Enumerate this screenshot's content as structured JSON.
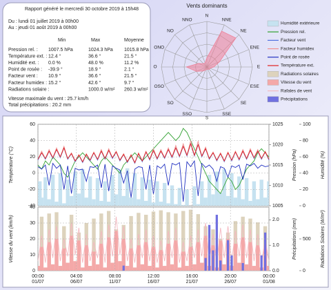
{
  "report": {
    "title": "Rapport généré le mercredi 30 octobre 2019 à 15h48",
    "from": "Du : lundi 01 juillet 2019 à 00h00",
    "to": "Au : jeudi 01 août 2019 à 00h00",
    "columns": [
      "Min",
      "Max",
      "Moyenne"
    ],
    "rows": [
      {
        "label": "Pression rel. :",
        "min": "1007.5 hPa",
        "max": "1024.3 hPa",
        "mean": "1015.8 hPa"
      },
      {
        "label": "Température ext. :",
        "min": "12.4 °",
        "max": "36.6 °",
        "mean": "21.5 °"
      },
      {
        "label": "Humidité ext. :",
        "min": "0.0 %",
        "max": "48.0 %",
        "mean": "11.2 %"
      },
      {
        "label": "Point de rosée :",
        "min": "-39.9 °",
        "max": "18.9 °",
        "mean": "2.1 °"
      },
      {
        "label": "Facteur vent :",
        "min": "10.9 °",
        "max": "36.6 °",
        "mean": "21.5 °"
      },
      {
        "label": "Facteur humidex :",
        "min": "15.2 °",
        "max": "42.6 °",
        "mean": "9.7 °"
      },
      {
        "label": "Radiations solaire :",
        "max": "1000.0 w/m²",
        "mean": "260.3 w/m²"
      }
    ],
    "wind_max": "Vitesse maximale du vent : 25.7 km/h",
    "rain_total": "Total précipitations : 20.2 mm"
  },
  "chart_data": [
    {
      "type": "radar",
      "title": "Vents dominants",
      "categories": [
        "N",
        "NNE",
        "NE",
        "ENE",
        "E",
        "ESE",
        "SE",
        "SSE",
        "S",
        "SSO",
        "SO",
        "OSO",
        "O",
        "ONO",
        "NO",
        "NNO"
      ],
      "values": [
        8,
        34,
        36,
        12,
        6,
        3,
        3,
        2,
        2,
        3,
        5,
        10,
        18,
        8,
        4,
        4
      ],
      "color": "#f08098",
      "rlim": [
        0,
        40
      ],
      "rticks": [
        10,
        20,
        30,
        40
      ]
    },
    {
      "type": "line",
      "x": [
        "01/07 00:00",
        "01/07 12:00",
        "02/07 00:00",
        "02/07 12:00",
        "03/07 00:00",
        "03/07 12:00",
        "04/07 00:00",
        "04/07 12:00",
        "05/07 00:00",
        "05/07 12:00",
        "06/07 00:00",
        "06/07 12:00",
        "07/07 00:00",
        "07/07 12:00",
        "08/07 00:00",
        "08/07 12:00",
        "09/07 00:00",
        "09/07 12:00",
        "10/07 00:00",
        "10/07 12:00",
        "11/07 00:00",
        "11/07 12:00",
        "12/07 00:00",
        "12/07 12:00",
        "13/07 00:00",
        "13/07 12:00",
        "14/07 00:00",
        "14/07 12:00",
        "15/07 00:00",
        "15/07 12:00",
        "16/07 00:00",
        "16/07 12:00",
        "17/07 00:00",
        "17/07 12:00",
        "18/07 00:00",
        "18/07 12:00",
        "19/07 00:00",
        "19/07 12:00",
        "20/07 00:00",
        "20/07 12:00",
        "21/07 00:00",
        "21/07 12:00",
        "22/07 00:00",
        "22/07 12:00",
        "23/07 00:00",
        "23/07 12:00",
        "24/07 00:00",
        "24/07 12:00",
        "25/07 00:00",
        "25/07 12:00",
        "26/07 00:00",
        "26/07 12:00",
        "27/07 00:00",
        "27/07 12:00",
        "28/07 00:00",
        "28/07 12:00",
        "29/07 00:00",
        "29/07 12:00",
        "30/07 00:00",
        "30/07 12:00",
        "31/07 00:00",
        "31/07 12:00",
        "01/08 00:00"
      ],
      "xlim": [
        "01/07 00:00",
        "01/08 00:00"
      ],
      "ylabel": "Température (°C)",
      "ylim": [
        -40,
        60
      ],
      "yticks": [
        -40,
        -20,
        0,
        20,
        40,
        60
      ],
      "y2label": "Pression (hPa)",
      "y2lim": [
        1005,
        1025
      ],
      "y2ticks": [
        1005,
        1010,
        1015,
        1020,
        1025
      ],
      "y3label": "Humidité (%)",
      "y3lim": [
        0,
        100
      ],
      "y3ticks": [
        0,
        20,
        40,
        60,
        80,
        100
      ],
      "grid": true,
      "series": [
        {
          "name": "Humidité extérieure",
          "color": "#c6e2f0",
          "kind": "area",
          "axis": "y3",
          "values": [
            30,
            10,
            35,
            8,
            38,
            5,
            40,
            3,
            32,
            12,
            42,
            15,
            45,
            10,
            36,
            8,
            34,
            6,
            30,
            5,
            38,
            14,
            44,
            12,
            46,
            10,
            40,
            8,
            35,
            6,
            32,
            4,
            30,
            5,
            28,
            3,
            25,
            2,
            22,
            1,
            20,
            0,
            24,
            2,
            30,
            10,
            38,
            14,
            42,
            16,
            45,
            12,
            40,
            10,
            36,
            8,
            34,
            6,
            30,
            8,
            32,
            10,
            30
          ]
        },
        {
          "name": "Pression rel.",
          "color": "#30a030",
          "kind": "line",
          "axis": "y2",
          "values": [
            1015,
            1014,
            1016,
            1015,
            1017,
            1016,
            1015,
            1013,
            1012,
            1014,
            1016,
            1017,
            1018,
            1017,
            1016,
            1015,
            1014,
            1016,
            1017,
            1016,
            1015,
            1014,
            1013,
            1015,
            1016,
            1017,
            1018,
            1017,
            1016,
            1017,
            1018,
            1019,
            1020,
            1021,
            1022,
            1023,
            1022,
            1021,
            1022,
            1024,
            1023,
            1021,
            1019,
            1017,
            1015,
            1013,
            1011,
            1010,
            1009,
            1008,
            1010,
            1012,
            1011,
            1009,
            1010,
            1012,
            1014,
            1015,
            1016,
            1018,
            1019,
            1018,
            1017
          ]
        },
        {
          "name": "Facteur vent",
          "color": "#5070e0",
          "kind": "line",
          "axis": "y",
          "values": [
            16,
            25,
            17,
            27,
            18,
            29,
            19,
            31,
            17,
            24,
            14,
            22,
            13,
            23,
            15,
            25,
            16,
            27,
            17,
            28,
            18,
            26,
            15,
            23,
            13,
            22,
            12,
            24,
            14,
            26,
            16,
            28,
            17,
            27,
            18,
            29,
            19,
            31,
            20,
            33,
            21,
            36,
            21,
            35,
            20,
            30,
            17,
            25,
            15,
            24,
            14,
            25,
            15,
            26,
            16,
            27,
            17,
            28,
            18,
            27,
            17,
            26,
            16
          ]
        },
        {
          "name": "Facteur humidex",
          "color": "#f09090",
          "kind": "line",
          "axis": "y",
          "values": [
            17,
            27,
            18,
            29,
            19,
            31,
            20,
            33,
            18,
            25,
            15,
            23,
            14,
            24,
            16,
            26,
            17,
            29,
            18,
            30,
            19,
            27,
            16,
            24,
            14,
            23,
            13,
            25,
            15,
            27,
            17,
            30,
            18,
            29,
            19,
            31,
            20,
            34,
            21,
            36,
            22,
            40,
            22,
            39,
            21,
            32,
            18,
            26,
            16,
            25,
            15,
            26,
            16,
            27,
            17,
            29,
            18,
            30,
            19,
            29,
            18,
            27,
            17
          ]
        },
        {
          "name": "Point de rosée",
          "color": "#2030c0",
          "kind": "line",
          "axis": "y",
          "values": [
            8,
            5,
            10,
            -15,
            12,
            6,
            10,
            -20,
            9,
            -25,
            6,
            4,
            5,
            -10,
            8,
            7,
            10,
            -18,
            11,
            -22,
            9,
            6,
            4,
            -12,
            3,
            -30,
            5,
            8,
            7,
            -20,
            10,
            -26,
            9,
            6,
            11,
            -15,
            12,
            10,
            13,
            -35,
            14,
            8,
            15,
            -28,
            12,
            7,
            10,
            5,
            -10,
            8,
            6,
            -5,
            9,
            7,
            10,
            -8,
            11,
            9,
            12,
            6,
            10,
            8,
            9
          ]
        },
        {
          "name": "Température ext.",
          "color": "#e02020",
          "kind": "line",
          "axis": "y",
          "values": [
            17,
            25,
            18,
            27,
            19,
            29,
            20,
            31,
            18,
            24,
            15,
            22,
            14,
            23,
            16,
            25,
            17,
            27,
            18,
            28,
            19,
            26,
            16,
            23,
            14,
            22,
            13,
            24,
            15,
            26,
            17,
            28,
            18,
            27,
            19,
            29,
            20,
            31,
            21,
            33,
            22,
            36,
            22,
            35,
            21,
            30,
            18,
            25,
            16,
            24,
            15,
            25,
            16,
            26,
            17,
            27,
            18,
            28,
            19,
            27,
            18,
            26,
            17
          ]
        }
      ]
    },
    {
      "type": "line",
      "x": [
        "01/07 00:00",
        "01/07 12:00",
        "02/07 00:00",
        "02/07 12:00",
        "03/07 00:00",
        "03/07 12:00",
        "04/07 00:00",
        "04/07 12:00",
        "05/07 00:00",
        "05/07 12:00",
        "06/07 00:00",
        "06/07 12:00",
        "07/07 00:00",
        "07/07 12:00",
        "08/07 00:00",
        "08/07 12:00",
        "09/07 00:00",
        "09/07 12:00",
        "10/07 00:00",
        "10/07 12:00",
        "11/07 00:00",
        "11/07 12:00",
        "12/07 00:00",
        "12/07 12:00",
        "13/07 00:00",
        "13/07 12:00",
        "14/07 00:00",
        "14/07 12:00",
        "15/07 00:00",
        "15/07 12:00",
        "16/07 00:00",
        "16/07 12:00",
        "17/07 00:00",
        "17/07 12:00",
        "18/07 00:00",
        "18/07 12:00",
        "19/07 00:00",
        "19/07 12:00",
        "20/07 00:00",
        "20/07 12:00",
        "21/07 00:00",
        "21/07 12:00",
        "22/07 00:00",
        "22/07 12:00",
        "23/07 00:00",
        "23/07 12:00",
        "24/07 00:00",
        "24/07 12:00",
        "25/07 00:00",
        "25/07 12:00",
        "26/07 00:00",
        "26/07 12:00",
        "27/07 00:00",
        "27/07 12:00",
        "28/07 00:00",
        "28/07 12:00",
        "29/07 00:00",
        "29/07 12:00",
        "30/07 00:00",
        "30/07 12:00",
        "31/07 00:00",
        "31/07 12:00",
        "01/08 00:00"
      ],
      "xlim": [
        "01/07 00:00",
        "01/08 00:00"
      ],
      "xticks": [
        {
          "value": "01/07 00:00",
          "label": [
            "00:00",
            "01/07"
          ]
        },
        {
          "value": "06/07 04:00",
          "label": [
            "04:00",
            "06/07"
          ]
        },
        {
          "value": "11/07 08:00",
          "label": [
            "08:00",
            "11/07"
          ]
        },
        {
          "value": "16/07 12:00",
          "label": [
            "12:00",
            "16/07"
          ]
        },
        {
          "value": "21/07 16:00",
          "label": [
            "16:00",
            "21/07"
          ]
        },
        {
          "value": "26/07 20:00",
          "label": [
            "20:00",
            "26/07"
          ]
        },
        {
          "value": "01/08 00:00",
          "label": [
            "00:00",
            "01/08"
          ]
        }
      ],
      "ylabel": "Vitesse du vent (km/h)",
      "ylim": [
        0,
        40
      ],
      "yticks": [
        0,
        10,
        20,
        30,
        40
      ],
      "y2label": "Précipitations (mm)",
      "y2lim": [
        0,
        2.5
      ],
      "y2ticks": [
        {
          "value": 0,
          "label": "0.0"
        },
        {
          "value": 1,
          "label": "1.0"
        },
        {
          "value": 2,
          "label": "2.0"
        }
      ],
      "y3label": "Radiations Solaires (W/m²)",
      "y3lim": [
        0,
        1000
      ],
      "y3ticks": [
        0,
        500
      ],
      "grid": true,
      "series": [
        {
          "name": "Radiations solaires",
          "color": "#ddd3bd",
          "kind": "area",
          "axis": "y3",
          "values": [
            0,
            850,
            0,
            900,
            0,
            920,
            0,
            700,
            0,
            880,
            0,
            600,
            0,
            750,
            0,
            820,
            0,
            900,
            0,
            940,
            0,
            650,
            0,
            720,
            0,
            860,
            0,
            910,
            0,
            880,
            0,
            930,
            0,
            950,
            0,
            920,
            0,
            900,
            0,
            940,
            0,
            960,
            0,
            890,
            0,
            700,
            0,
            650,
            0,
            500,
            0,
            600,
            0,
            780,
            0,
            850,
            0,
            820,
            0,
            760,
            0,
            700,
            0
          ]
        },
        {
          "name": "Vitesse du vent",
          "color": "#f4a8a8",
          "kind": "area",
          "axis": "y",
          "values": [
            3,
            15,
            2,
            18,
            4,
            20,
            3,
            14,
            5,
            22,
            6,
            19,
            2,
            16,
            3,
            12,
            4,
            17,
            2,
            21,
            5,
            25,
            6,
            20,
            3,
            14,
            2,
            16,
            4,
            18,
            3,
            15,
            2,
            13,
            3,
            17,
            4,
            19,
            2,
            12,
            3,
            15,
            4,
            18,
            5,
            22,
            3,
            16,
            2,
            19,
            4,
            20,
            3,
            17,
            5,
            21,
            4,
            18,
            3,
            16,
            2,
            14,
            3
          ]
        },
        {
          "name": "Rafales de vent",
          "color": "#f4b8c0",
          "kind": "line",
          "axis": "y",
          "values": [
            6,
            22,
            5,
            26,
            8,
            28,
            6,
            20,
            9,
            30,
            10,
            27,
            5,
            23,
            6,
            18,
            8,
            25,
            5,
            29,
            9,
            34,
            10,
            28,
            6,
            20,
            5,
            23,
            8,
            26,
            6,
            22,
            5,
            19,
            6,
            25,
            8,
            27,
            5,
            18,
            6,
            22,
            8,
            26,
            9,
            30,
            6,
            23,
            5,
            27,
            8,
            28,
            6,
            25,
            9,
            29,
            8,
            26,
            6,
            23,
            5,
            20,
            6
          ]
        },
        {
          "name": "Précipitations",
          "color": "#7070e0",
          "kind": "bar",
          "axis": "y2",
          "values": [
            0,
            0,
            0,
            0,
            0,
            0,
            0,
            0,
            0,
            0,
            0,
            0,
            0,
            0,
            0,
            0,
            0,
            0,
            0,
            0,
            0,
            0,
            0,
            0.2,
            0,
            0,
            0,
            0,
            0,
            0,
            0,
            0,
            0,
            0,
            0,
            0,
            0,
            0,
            0,
            0,
            0,
            0,
            0,
            0,
            0,
            0.5,
            1.8,
            0.8,
            2.2,
            0.4,
            0,
            1.2,
            0.6,
            0,
            0,
            0.3,
            0,
            0,
            0,
            0,
            0.6,
            1.5,
            0
          ]
        }
      ]
    }
  ]
}
